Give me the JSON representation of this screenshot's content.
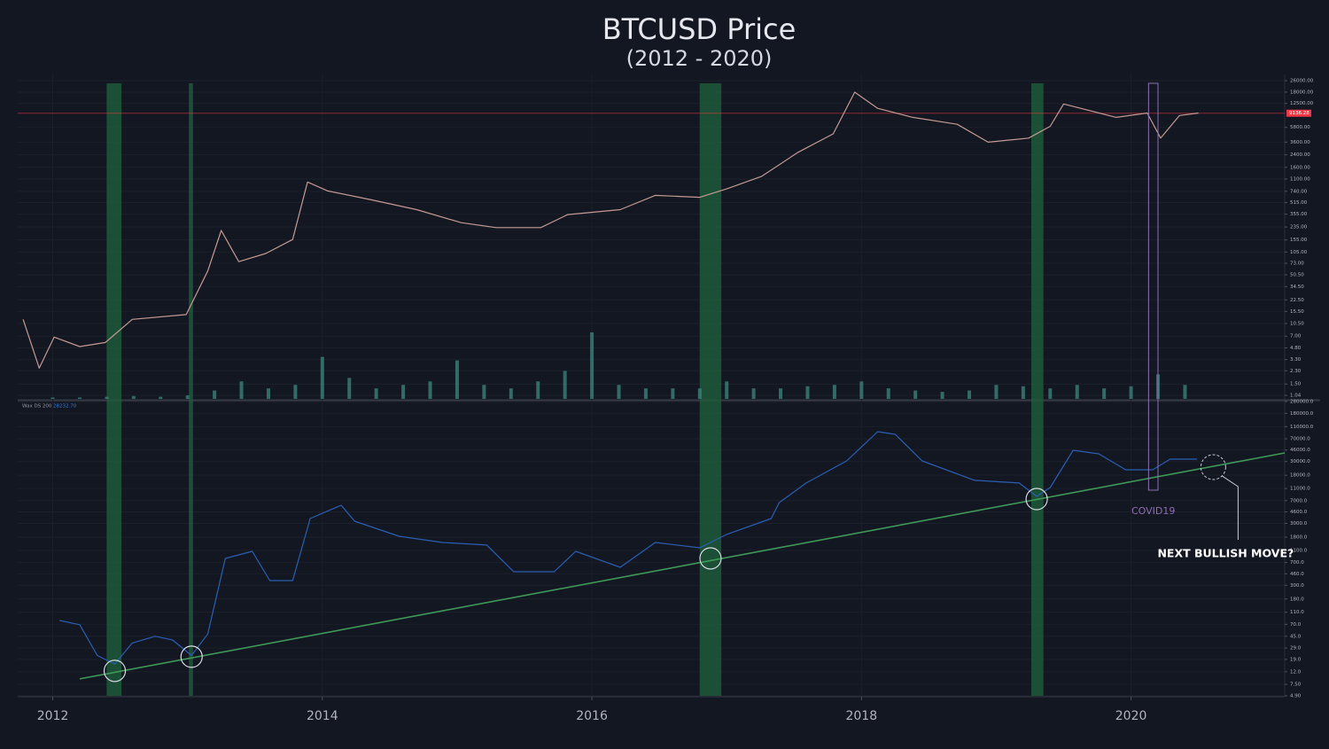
{
  "chart_data": [
    {
      "type": "line",
      "title": "BTCUSD Price",
      "subtitle": "(2012 - 2020)",
      "log_scale": true,
      "xlim": [
        2011.74,
        2021.14
      ],
      "ylim": [
        0.93,
        31800
      ],
      "yticks": [
        {
          "value": 26000,
          "label": "26000.00"
        },
        {
          "value": 18000,
          "label": "18000.00"
        },
        {
          "value": 12500,
          "label": "12500.00"
        },
        {
          "value": 5800,
          "label": "5800.00"
        },
        {
          "value": 3600,
          "label": "3600.00"
        },
        {
          "value": 2400,
          "label": "2400.00"
        },
        {
          "value": 1600,
          "label": "1600.00"
        },
        {
          "value": 1100,
          "label": "1100.00"
        },
        {
          "value": 740,
          "label": "740.00"
        },
        {
          "value": 515,
          "label": "515.00"
        },
        {
          "value": 355,
          "label": "355.00"
        },
        {
          "value": 235,
          "label": "235.00"
        },
        {
          "value": 155,
          "label": "155.00"
        },
        {
          "value": 105,
          "label": "105.00"
        },
        {
          "value": 73,
          "label": "73.00"
        },
        {
          "value": 50.5,
          "label": "50.50"
        },
        {
          "value": 34.5,
          "label": "34.50"
        },
        {
          "value": 22.5,
          "label": "22.50"
        },
        {
          "value": 15.5,
          "label": "15.50"
        },
        {
          "value": 10.5,
          "label": "10.50"
        },
        {
          "value": 7,
          "label": "7.00"
        },
        {
          "value": 4.8,
          "label": "4.80"
        },
        {
          "value": 3.3,
          "label": "3.30"
        },
        {
          "value": 2.3,
          "label": "2.30"
        },
        {
          "value": 1.5,
          "label": "1.50"
        },
        {
          "value": 1.04,
          "label": "1.04"
        }
      ],
      "grid": true,
      "series": [
        {
          "color": "#c49a93",
          "x": [
            2011.78,
            2011.9,
            2012.01,
            2012.2,
            2012.39,
            2012.59,
            2012.99,
            2013.15,
            2013.25,
            2013.38,
            2013.58,
            2013.78,
            2013.89,
            2014.04,
            2014.37,
            2014.7,
            2015.03,
            2015.29,
            2015.62,
            2015.82,
            2016.21,
            2016.47,
            2016.8,
            2017.0,
            2017.26,
            2017.53,
            2017.79,
            2017.95,
            2018.12,
            2018.38,
            2018.71,
            2018.94,
            2019.24,
            2019.4,
            2019.5,
            2019.89,
            2020.12,
            2020.22,
            2020.36,
            2020.5
          ],
          "values": [
            12,
            2.5,
            6.8,
            5,
            5.7,
            12,
            14,
            57,
            210,
            77,
            100,
            157,
            1000,
            750,
            560,
            410,
            270,
            230,
            230,
            350,
            410,
            650,
            610,
            800,
            1200,
            2600,
            4700,
            18000,
            10700,
            8000,
            6400,
            3600,
            4100,
            6000,
            12300,
            8000,
            9200,
            4100,
            8500,
            9200
          ]
        }
      ],
      "price_line": 9136.28,
      "price_line_color": "#f23645",
      "volume": {
        "color": "#3f8f84",
        "x": [
          2012.0,
          2012.2,
          2012.4,
          2012.6,
          2012.8,
          2013.0,
          2013.2,
          2013.4,
          2013.6,
          2013.8,
          2014.0,
          2014.2,
          2014.4,
          2014.6,
          2014.8,
          2015.0,
          2015.2,
          2015.4,
          2015.6,
          2015.8,
          2016.0,
          2016.2,
          2016.4,
          2016.6,
          2016.8,
          2017.0,
          2017.2,
          2017.4,
          2017.6,
          2017.8,
          2018.0,
          2018.2,
          2018.4,
          2018.6,
          2018.8,
          2019.0,
          2019.2,
          2019.4,
          2019.6,
          2019.8,
          2020.0,
          2020.2,
          2020.4
        ],
        "values": [
          2,
          2,
          3,
          4,
          3,
          5,
          12,
          25,
          15,
          20,
          60,
          30,
          15,
          20,
          25,
          55,
          20,
          15,
          25,
          40,
          95,
          20,
          15,
          15,
          15,
          25,
          15,
          15,
          18,
          20,
          25,
          15,
          12,
          10,
          12,
          20,
          18,
          15,
          20,
          15,
          18,
          35,
          20
        ]
      }
    },
    {
      "type": "line",
      "indicator_name": "Wax DS 200",
      "indicator_value_label": "28232.70",
      "log_scale": true,
      "xlim": [
        2011.74,
        2021.14
      ],
      "xticks": [
        2012,
        2014,
        2016,
        2018,
        2020
      ],
      "ylim": [
        4.9,
        280000
      ],
      "yticks": [
        {
          "value": 280000,
          "label": "280000.0"
        },
        {
          "value": 180000,
          "label": "180000.0"
        },
        {
          "value": 110000,
          "label": "110000.0"
        },
        {
          "value": 70000,
          "label": "70000.0"
        },
        {
          "value": 46000,
          "label": "46000.0"
        },
        {
          "value": 30000,
          "label": "30000.0"
        },
        {
          "value": 18000,
          "label": "18000.0"
        },
        {
          "value": 11000,
          "label": "11000.0"
        },
        {
          "value": 7000,
          "label": "7000.0"
        },
        {
          "value": 4600,
          "label": "4600.0"
        },
        {
          "value": 3000,
          "label": "3000.0"
        },
        {
          "value": 1800,
          "label": "1800.0"
        },
        {
          "value": 1100,
          "label": "1100.0"
        },
        {
          "value": 700,
          "label": "700.0"
        },
        {
          "value": 460,
          "label": "460.0"
        },
        {
          "value": 300,
          "label": "300.0"
        },
        {
          "value": 180,
          "label": "180.0"
        },
        {
          "value": 110,
          "label": "110.0"
        },
        {
          "value": 70,
          "label": "70.0"
        },
        {
          "value": 45,
          "label": "45.0"
        },
        {
          "value": 29,
          "label": "29.0"
        },
        {
          "value": 19,
          "label": "19.0"
        },
        {
          "value": 12,
          "label": "12.0"
        },
        {
          "value": 7.5,
          "label": "7.50"
        },
        {
          "value": 4.9,
          "label": "4.90"
        }
      ],
      "grid": true,
      "series": [
        {
          "color": "#2b5fb4",
          "x": [
            2012.05,
            2012.2,
            2012.33,
            2012.46,
            2012.59,
            2012.76,
            2012.89,
            2013.03,
            2013.15,
            2013.28,
            2013.48,
            2013.61,
            2013.78,
            2013.91,
            2014.14,
            2014.24,
            2014.57,
            2014.89,
            2015.22,
            2015.42,
            2015.72,
            2015.88,
            2016.21,
            2016.47,
            2016.8,
            2017.0,
            2017.33,
            2017.39,
            2017.59,
            2017.89,
            2018.12,
            2018.25,
            2018.45,
            2018.84,
            2019.17,
            2019.3,
            2019.4,
            2019.57,
            2019.76,
            2019.96,
            2020.16,
            2020.29,
            2020.49
          ],
          "values": [
            81,
            69,
            22,
            16,
            35,
            45,
            39,
            22,
            49,
            815,
            1060,
            357,
            357,
            3600,
            5900,
            3260,
            1860,
            1475,
            1340,
            497,
            497,
            1060,
            586,
            1475,
            1210,
            1990,
            3600,
            6520,
            13500,
            30700,
            91200,
            82600,
            30700,
            14900,
            13500,
            8200,
            11400,
            45600,
            40000,
            22100,
            22100,
            32800,
            32800
          ]
        },
        {
          "color": "#3e9a57",
          "x": [
            2012.2,
            2021.14
          ],
          "values": [
            9.2,
            41300
          ]
        }
      ],
      "bands": [
        [
          2012.4,
          2012.51
        ],
        [
          2013.01,
          2013.04
        ],
        [
          2016.8,
          2016.96
        ],
        [
          2019.26,
          2019.35
        ]
      ],
      "band_color": "#1f5a3a",
      "highlights": [
        {
          "x": 2012.46,
          "y": 12.4
        },
        {
          "x": 2013.03,
          "y": 21
        },
        {
          "x": 2016.88,
          "y": 815
        },
        {
          "x": 2019.3,
          "y": 7430
        }
      ],
      "covid": {
        "text": "COVID19",
        "x0": 2020.13,
        "x1": 2020.2,
        "color": "#8e6fb3"
      },
      "next_move": {
        "text": "NEXT BULLISH MOVE?",
        "x": 2020.61,
        "y": 24400
      }
    }
  ]
}
